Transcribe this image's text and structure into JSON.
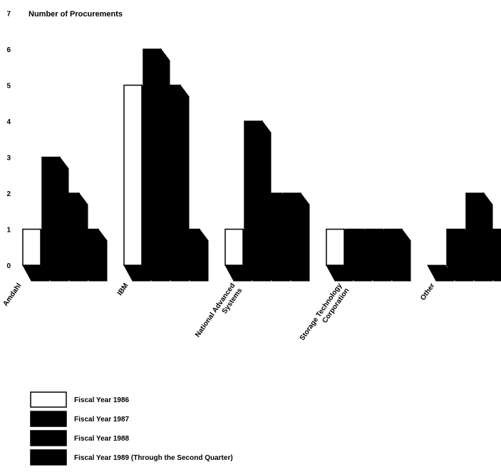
{
  "chart_data": {
    "type": "bar",
    "ylabel": "Number of Procurements",
    "ylim": [
      0,
      7
    ],
    "yticks": [
      0,
      1,
      2,
      3,
      4,
      5,
      6,
      7
    ],
    "categories": [
      [
        "Amdahl"
      ],
      [
        "IBM"
      ],
      [
        "National Advanced",
        "Systems"
      ],
      [
        "Storage Technology",
        "Corporation"
      ],
      [
        "Other"
      ]
    ],
    "series": [
      {
        "name": "Fiscal Year 1986",
        "values": [
          1,
          5,
          1,
          1,
          0
        ],
        "color": "#ffffff"
      },
      {
        "name": "Fiscal Year 1987",
        "values": [
          3,
          6,
          4,
          1,
          1
        ],
        "color": "#000000"
      },
      {
        "name": "Fiscal Year 1988",
        "values": [
          2,
          5,
          2,
          1,
          2
        ],
        "color": "#000000"
      },
      {
        "name": "Fiscal Year 1989 (Through the Second Quarter)",
        "values": [
          1,
          1,
          2,
          1,
          1
        ],
        "color": "#000000"
      }
    ]
  }
}
